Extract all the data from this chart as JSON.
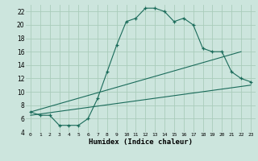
{
  "xlabel": "Humidex (Indice chaleur)",
  "ylabel": "",
  "background_color": "#cce5dd",
  "line_color": "#1a6b5a",
  "grid_color": "#aaccbb",
  "xlim": [
    -0.5,
    23.5
  ],
  "ylim": [
    4,
    23
  ],
  "xticks": [
    0,
    1,
    2,
    3,
    4,
    5,
    6,
    7,
    8,
    9,
    10,
    11,
    12,
    13,
    14,
    15,
    16,
    17,
    18,
    19,
    20,
    21,
    22,
    23
  ],
  "yticks": [
    4,
    6,
    8,
    10,
    12,
    14,
    16,
    18,
    20,
    22
  ],
  "line1_x": [
    0,
    1,
    2,
    3,
    4,
    5,
    6,
    7,
    8,
    9,
    10,
    11,
    12,
    13,
    14,
    15,
    16,
    17,
    18,
    19,
    20,
    21,
    22,
    23
  ],
  "line1_y": [
    7,
    6.5,
    6.5,
    5,
    5,
    5,
    6,
    9,
    13,
    17,
    20.5,
    21,
    22.5,
    22.5,
    22,
    20.5,
    21,
    20,
    16.5,
    16,
    16,
    13,
    12,
    11.5
  ],
  "line2_x": [
    0,
    22
  ],
  "line2_y": [
    7,
    16
  ],
  "line3_x": [
    0,
    23
  ],
  "line3_y": [
    6.5,
    11
  ]
}
